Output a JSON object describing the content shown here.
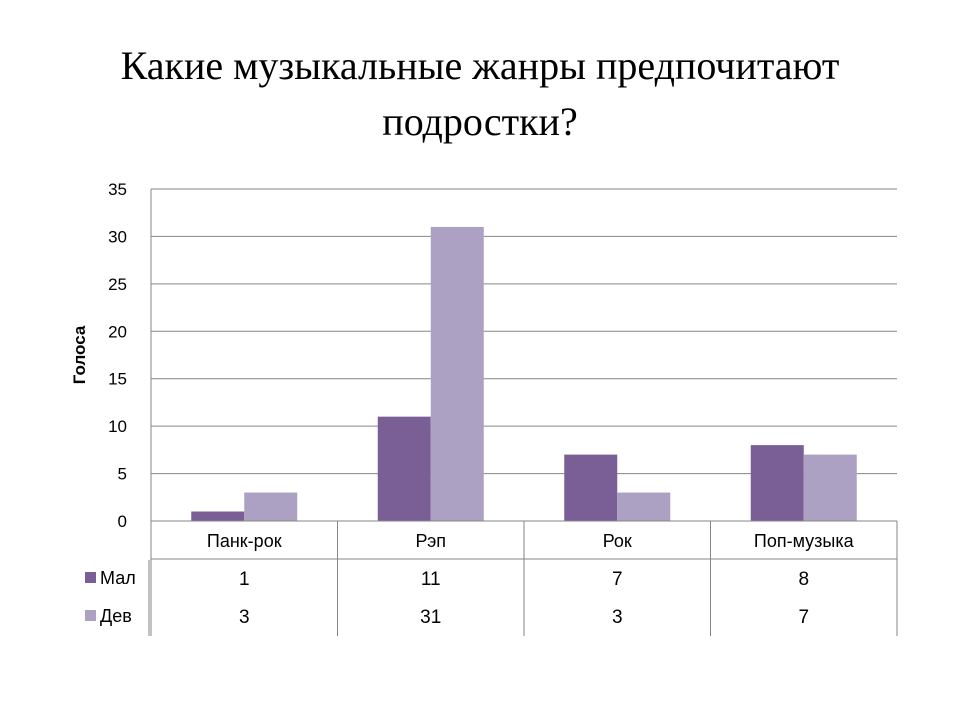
{
  "slide": {
    "title_line1": "Какие музыкальные жанры предпочитают",
    "title_line2": "подростки?"
  },
  "chart_data": {
    "type": "bar",
    "title": "",
    "xlabel": "",
    "ylabel": "Голоса",
    "categories": [
      "Панк-рок",
      "Рэп",
      "Рок",
      "Поп-музыка"
    ],
    "series": [
      {
        "name": "Мал",
        "values": [
          1,
          11,
          7,
          8
        ],
        "color": "#7a5f96"
      },
      {
        "name": "Дев",
        "values": [
          3,
          31,
          3,
          7
        ],
        "color": "#aca0c3"
      }
    ],
    "ylim": [
      0,
      35
    ],
    "yticks": [
      0,
      5,
      10,
      15,
      20,
      25,
      30,
      35
    ],
    "grid": true,
    "legend": "data-table"
  }
}
